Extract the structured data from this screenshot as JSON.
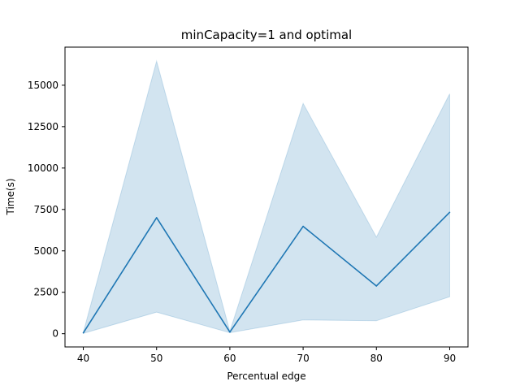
{
  "chart_data": {
    "type": "line",
    "title": "minCapacity=1 and optimal",
    "xlabel": "Percentual edge",
    "ylabel": "Time(s)",
    "x": [
      40,
      50,
      60,
      70,
      80,
      90
    ],
    "series": [
      {
        "values": [
          50,
          7000,
          100,
          6480,
          2880,
          7330
        ],
        "lower": [
          20,
          1300,
          60,
          830,
          780,
          2230
        ],
        "upper": [
          80,
          16450,
          140,
          13900,
          5830,
          14480
        ],
        "color": "#1f77b4",
        "band_color": "#1f77b4"
      }
    ],
    "xticks": [
      40,
      50,
      60,
      70,
      80,
      90
    ],
    "yticks": [
      0,
      2500,
      5000,
      7500,
      10000,
      12500,
      15000
    ],
    "xlim": [
      37.5,
      92.5
    ],
    "ylim": [
      -800,
      17300
    ],
    "grid": false
  }
}
